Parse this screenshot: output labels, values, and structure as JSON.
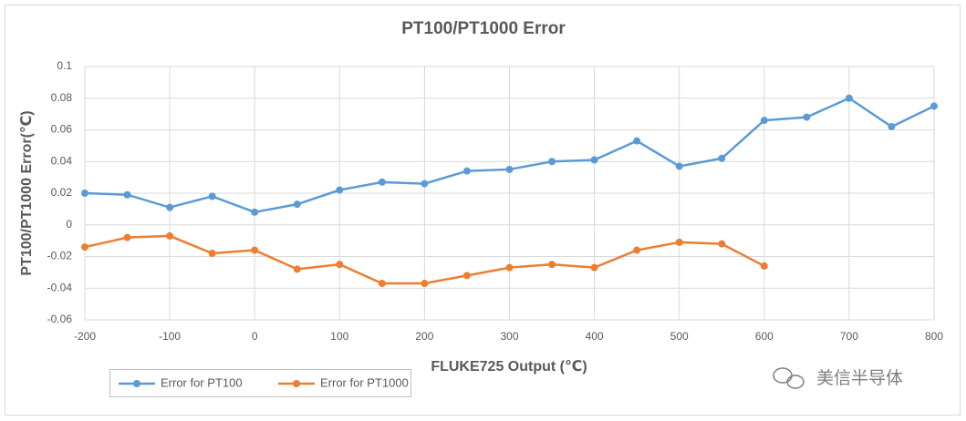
{
  "chart_data": {
    "type": "line",
    "title": "PT100/PT1000 Error",
    "x_label": "FLUKE725 Output (℃)",
    "y_label": "PT100/PT1000 Error(℃)",
    "x": [
      -200,
      -150,
      -100,
      -50,
      0,
      50,
      100,
      150,
      200,
      250,
      300,
      350,
      400,
      450,
      500,
      550,
      600,
      650,
      700,
      750,
      800
    ],
    "series": [
      {
        "name": "Error for PT100",
        "color": "#5b9bd5",
        "values": [
          0.02,
          0.019,
          0.011,
          0.018,
          0.008,
          0.013,
          0.022,
          0.027,
          0.026,
          0.034,
          0.035,
          0.04,
          0.041,
          0.053,
          0.037,
          0.042,
          0.066,
          0.068,
          0.08,
          0.062,
          0.075
        ]
      },
      {
        "name": "Error for PT1000",
        "color": "#ed7d31",
        "values": [
          -0.014,
          -0.008,
          -0.007,
          -0.018,
          -0.016,
          -0.028,
          -0.025,
          -0.037,
          -0.037,
          -0.032,
          -0.027,
          -0.025,
          -0.027,
          -0.016,
          -0.011,
          -0.012,
          -0.026,
          null,
          null,
          null,
          null
        ]
      }
    ],
    "xlim": [
      -200,
      800
    ],
    "xticks": [
      -200,
      -100,
      0,
      100,
      200,
      300,
      400,
      500,
      600,
      700,
      800
    ],
    "ylim": [
      -0.06,
      0.1
    ],
    "yticks": [
      -0.06,
      -0.04,
      -0.02,
      0,
      0.02,
      0.04,
      0.06,
      0.08,
      0.1
    ],
    "grid": true,
    "legend": "bottom-left"
  },
  "watermark": "美信半导体"
}
